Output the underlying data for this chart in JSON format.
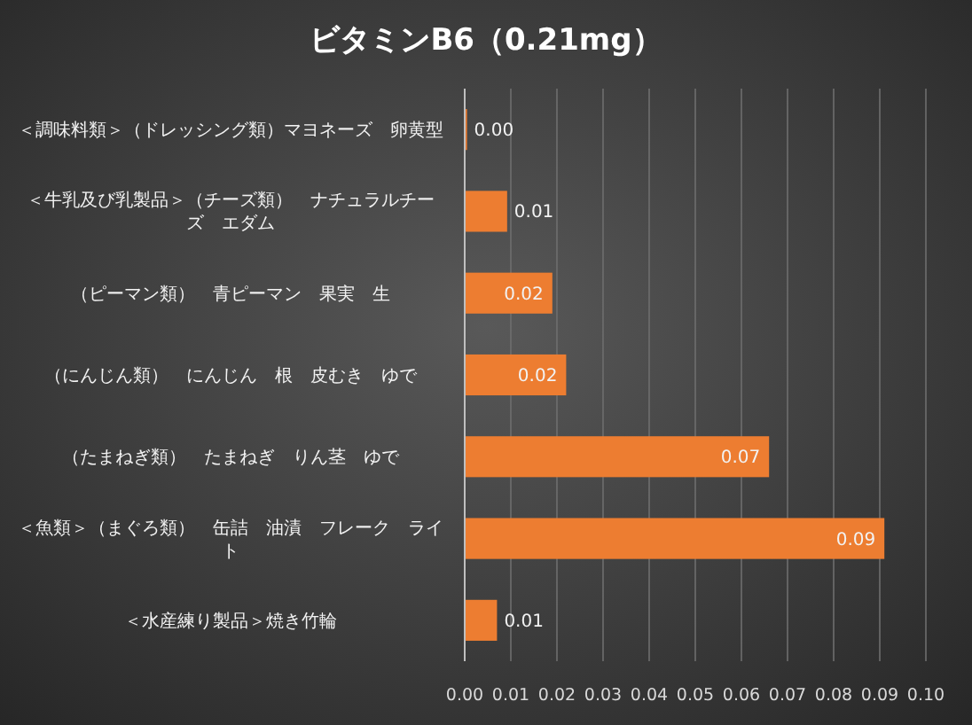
{
  "chart_data": {
    "type": "bar",
    "orientation": "horizontal",
    "title": "ビタミンB6（0.21mg）",
    "categories": [
      "＜調味料類＞（ドレッシング類）マヨネーズ　卵黄型",
      "＜牛乳及び乳製品＞（チーズ類）　ナチュラルチーズ　エダム",
      "（ピーマン類）　青ピーマン　果実　生",
      "（にんじん類）　にんじん　根　皮むき　ゆで",
      "（たまねぎ類）　たまねぎ　りん茎　ゆで",
      "＜魚類＞（まぐろ類）　缶詰　油漬　フレーク　ライト",
      "＜水産練り製品＞焼き竹輪"
    ],
    "values": [
      0.0005,
      0.0092,
      0.019,
      0.022,
      0.066,
      0.091,
      0.007
    ],
    "value_labels": [
      "0.00",
      "0.01",
      "0.02",
      "0.02",
      "0.07",
      "0.09",
      "0.01"
    ],
    "color": "#ed7d31",
    "xlim": [
      0,
      0.1
    ],
    "xticks": [
      {
        "value": 0,
        "label": "0.00"
      },
      {
        "value": 0.01,
        "label": "0.01"
      },
      {
        "value": 0.02,
        "label": "0.02"
      },
      {
        "value": 0.03,
        "label": "0.03"
      },
      {
        "value": 0.04,
        "label": "0.04"
      },
      {
        "value": 0.05,
        "label": "0.05"
      },
      {
        "value": 0.06,
        "label": "0.06"
      },
      {
        "value": 0.07,
        "label": "0.07"
      },
      {
        "value": 0.08,
        "label": "0.08"
      },
      {
        "value": 0.09,
        "label": "0.09"
      },
      {
        "value": 0.1,
        "label": "0.10"
      }
    ],
    "grid": "x"
  }
}
